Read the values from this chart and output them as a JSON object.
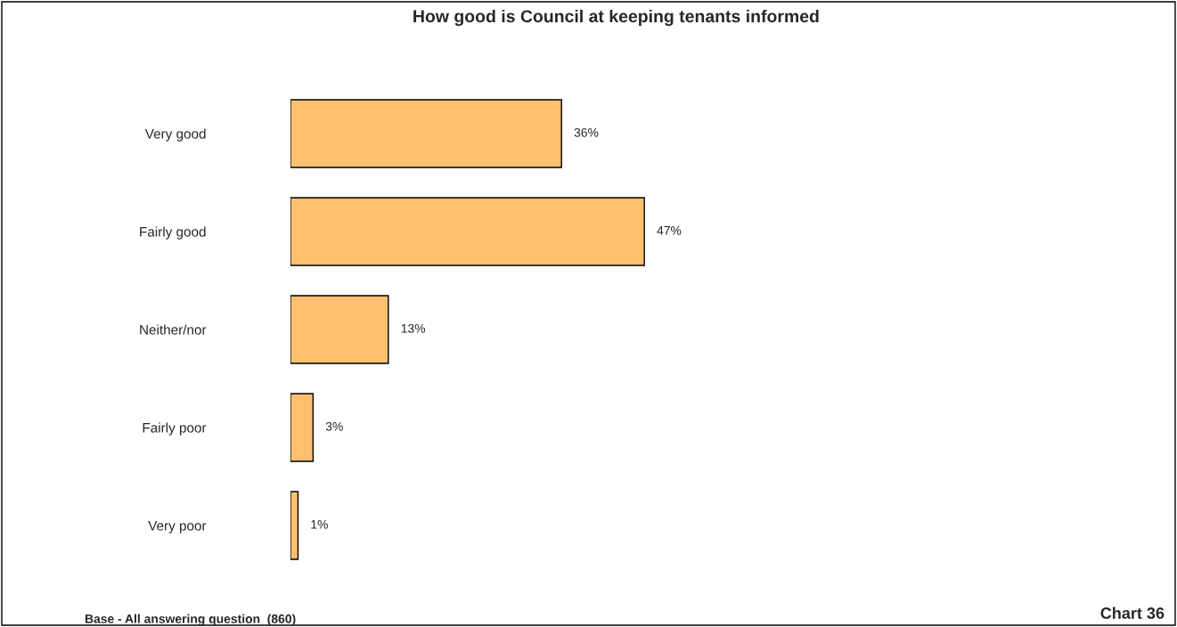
{
  "chart_data": {
    "type": "bar",
    "orientation": "horizontal",
    "title": "How good is Council at keeping tenants informed",
    "categories": [
      "Very good",
      "Fairly good",
      "Neither/nor",
      "Fairly poor",
      "Very poor"
    ],
    "values": [
      36,
      47,
      13,
      3,
      1
    ],
    "value_labels": [
      "36%",
      "47%",
      "13%",
      "3%",
      "1%"
    ],
    "color": "#fec06e",
    "annotations": [
      "Base - All answering question  (860)",
      "Chart 36"
    ]
  }
}
